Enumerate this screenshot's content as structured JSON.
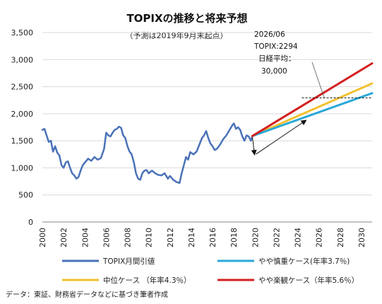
{
  "chart_data": {
    "type": "line",
    "title": "TOPIXの推移と将来予想",
    "subtitle": "（予測は2019年9月末起点）",
    "xlabel": "",
    "ylabel": "",
    "xlim": [
      2000,
      2031
    ],
    "ylim": [
      0,
      3500
    ],
    "y_ticks": [
      0,
      500,
      1000,
      1500,
      2000,
      2500,
      3000,
      3500
    ],
    "y_tick_labels": [
      "0",
      "500",
      "1,000",
      "1,500",
      "2,000",
      "2,500",
      "3,000",
      "3,500"
    ],
    "x_ticks": [
      2000,
      2002,
      2004,
      2006,
      2008,
      2010,
      2012,
      2014,
      2016,
      2018,
      2020,
      2022,
      2024,
      2026,
      2028,
      2030
    ],
    "grid": "horizontal",
    "legend_position": "bottom",
    "series": [
      {
        "name": "TOPIX月間引値",
        "color": "#4a72b8",
        "x": [
          2000.0,
          2000.2,
          2000.4,
          2000.6,
          2000.8,
          2001.0,
          2001.2,
          2001.4,
          2001.6,
          2001.8,
          2002.0,
          2002.2,
          2002.4,
          2002.6,
          2002.8,
          2003.0,
          2003.2,
          2003.4,
          2003.6,
          2003.8,
          2004.0,
          2004.3,
          2004.6,
          2004.9,
          2005.2,
          2005.5,
          2005.8,
          2006.0,
          2006.2,
          2006.4,
          2006.6,
          2006.8,
          2007.0,
          2007.2,
          2007.4,
          2007.6,
          2007.8,
          2008.0,
          2008.2,
          2008.4,
          2008.6,
          2008.8,
          2009.0,
          2009.2,
          2009.4,
          2009.6,
          2009.8,
          2010.0,
          2010.3,
          2010.6,
          2010.9,
          2011.2,
          2011.5,
          2011.8,
          2012.0,
          2012.3,
          2012.6,
          2012.9,
          2013.1,
          2013.3,
          2013.5,
          2013.7,
          2013.9,
          2014.2,
          2014.5,
          2014.8,
          2015.0,
          2015.2,
          2015.4,
          2015.6,
          2015.8,
          2016.0,
          2016.2,
          2016.4,
          2016.6,
          2016.8,
          2017.0,
          2017.3,
          2017.6,
          2017.9,
          2018.0,
          2018.2,
          2018.4,
          2018.6,
          2018.8,
          2019.0,
          2019.2,
          2019.4,
          2019.6,
          2019.75
        ],
        "values": [
          1700,
          1720,
          1600,
          1480,
          1500,
          1300,
          1400,
          1280,
          1230,
          1050,
          1000,
          1100,
          1120,
          1000,
          900,
          860,
          800,
          830,
          950,
          1050,
          1100,
          1170,
          1130,
          1200,
          1150,
          1180,
          1350,
          1650,
          1600,
          1580,
          1650,
          1700,
          1720,
          1760,
          1740,
          1600,
          1550,
          1400,
          1300,
          1250,
          1100,
          900,
          800,
          780,
          900,
          950,
          960,
          900,
          950,
          900,
          870,
          860,
          900,
          800,
          850,
          780,
          740,
          720,
          900,
          1050,
          1200,
          1150,
          1290,
          1250,
          1300,
          1450,
          1550,
          1600,
          1680,
          1550,
          1450,
          1400,
          1330,
          1350,
          1400,
          1460,
          1530,
          1600,
          1700,
          1800,
          1820,
          1720,
          1750,
          1700,
          1580,
          1500,
          1600,
          1580,
          1500,
          1590
        ]
      },
      {
        "name": "やや慎重ケース(年率3.7％)",
        "color": "#2aa8d8",
        "x": [
          2019.75,
          2031
        ],
        "values": [
          1590,
          2380
        ]
      },
      {
        "name": "中位ケース （年率4.3％）",
        "color": "#f2c12e",
        "x": [
          2019.75,
          2031
        ],
        "values": [
          1590,
          2560
        ]
      },
      {
        "name": "やや楽観ケース（年率5.6％）",
        "color": "#d42020",
        "x": [
          2019.75,
          2031
        ],
        "values": [
          1590,
          2930
        ]
      }
    ],
    "annotation": {
      "lines": [
        "2026/06",
        "TOPIX:2294",
        "日経平均：",
        "30,000"
      ],
      "reference_value": 2294,
      "reference_year": 2026.5
    }
  },
  "source_note": "データ：東証、財務省データなどに基づき筆者作成"
}
